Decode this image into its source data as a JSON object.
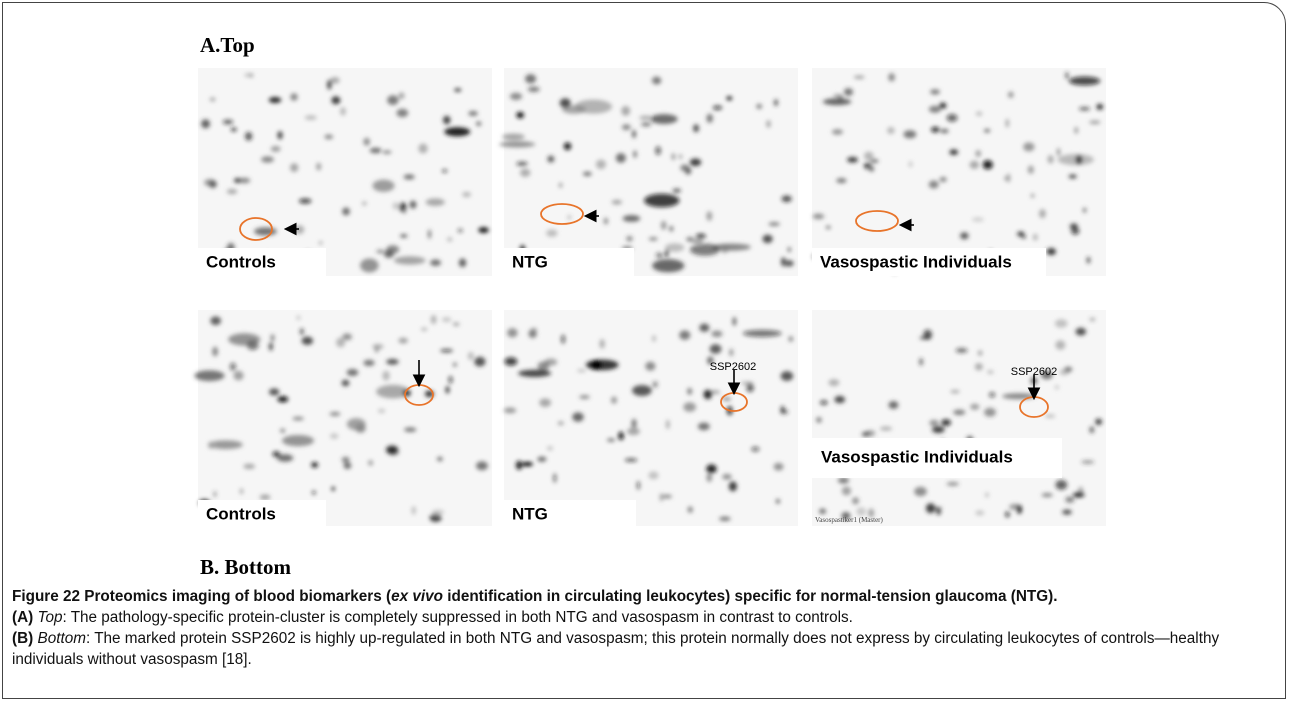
{
  "figure": {
    "top_heading": "A.Top",
    "bottom_heading": "B. Bottom",
    "panels": [
      {
        "label": "Controls"
      },
      {
        "label": "NTG"
      },
      {
        "label": "Vasospastic Individuals"
      },
      {
        "label": "Controls"
      },
      {
        "label": "NTG",
        "marker": "SSP2602"
      },
      {
        "label": "Vasospastic Individuals",
        "marker": "SSP2602",
        "footnote": "Vasospastiker1 (Master)"
      }
    ],
    "caption": [
      "Figure 22 Proteomics imaging of blood biomarkers (",
      "ex vivo",
      " identification in circulating leukocytes) specific for normal-tension glaucoma (NTG).",
      "(A)",
      "Top",
      ": The pathology-specific protein-cluster is completely suppressed in both NTG and vasospasm in contrast to controls.",
      "(B)",
      "Bottom",
      ": The marked protein SSP2602 is highly up-regulated in both NTG and vasospasm; this protein normally does not express by circulating leukocytes of controls—healthy individuals without vasospasm [18]."
    ]
  }
}
